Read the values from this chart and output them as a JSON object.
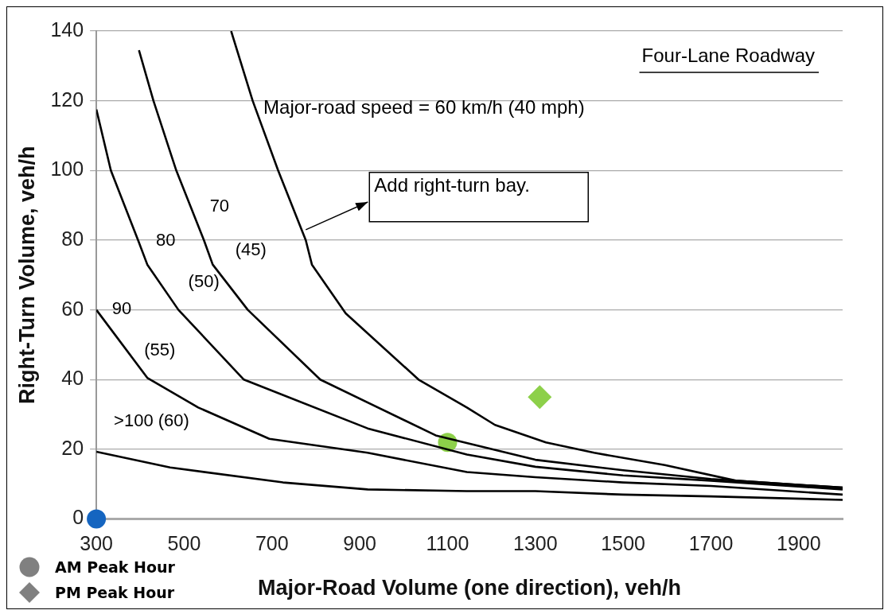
{
  "chart_data": {
    "type": "line",
    "xlabel": "Major-Road Volume (one direction), veh/h",
    "ylabel": "Right-Turn Volume, veh/h",
    "xlim": [
      300,
      2000
    ],
    "xticks": [
      300,
      500,
      700,
      900,
      1100,
      1300,
      1500,
      1700,
      1900
    ],
    "ylim": [
      0,
      140
    ],
    "yticks": [
      0,
      20,
      40,
      60,
      80,
      100,
      120,
      140
    ],
    "grid": "y",
    "marker": "none",
    "line_style": "solid",
    "annotations": [
      "Four-Lane Roadway",
      "Major-road speed = 60 km/h (40 mph)",
      {
        "text": "Add right-turn bay.",
        "x": 777,
        "y": 83
      },
      "70",
      "(45)",
      "80",
      "(50)",
      "90",
      "(55)",
      ">100 (60)",
      "AM Peak Hour",
      "PM Peak Hour"
    ],
    "series": [
      {
        "color": "#000000",
        "x": [
          607,
          656,
          714,
          777,
          791,
          868,
          1034,
          1144,
          1208,
          1324,
          1434,
          1595,
          1757,
          2000
        ],
        "values": [
          140,
          120,
          100,
          80,
          73,
          59,
          40,
          32,
          27,
          22,
          19,
          15.5,
          11,
          9
        ]
      },
      {
        "color": "#000000",
        "x": [
          397,
          430,
          482,
          545,
          565,
          645,
          810,
          1073,
          1300,
          1500,
          1700,
          2000
        ],
        "values": [
          134.5,
          120,
          100,
          80,
          73,
          60,
          40,
          24,
          17,
          14,
          11.5,
          9
        ]
      },
      {
        "color": "#000000",
        "x": [
          300,
          333,
          395,
          416,
          487,
          636,
          918,
          1144,
          1300,
          1500,
          1700,
          2000
        ],
        "values": [
          117.5,
          100,
          80,
          73,
          60,
          40,
          26,
          18.5,
          15,
          12.5,
          11,
          8.5
        ]
      },
      {
        "color": "#000000",
        "x": [
          300,
          416,
          532,
          694,
          918,
          1144,
          1300,
          1500,
          1700,
          2000
        ],
        "values": [
          60,
          40.5,
          32,
          23,
          19,
          13.5,
          12,
          10.5,
          9.5,
          7
        ]
      },
      {
        "color": "#000000",
        "x": [
          300,
          468,
          725,
          918,
          1144,
          1300,
          1500,
          1700,
          2000
        ],
        "values": [
          19.3,
          14.8,
          10.5,
          8.5,
          8,
          8,
          7,
          6.5,
          5.5
        ]
      },
      {
        "type": "scatter",
        "colors": [
          "#1565c0",
          "#8dd04a"
        ],
        "marker": "circle",
        "x": [
          300,
          1100
        ],
        "values": [
          0,
          22
        ]
      },
      {
        "type": "scatter",
        "colors": [
          "#8dd04a"
        ],
        "marker": "diamond",
        "x": [
          1310
        ],
        "values": [
          35
        ]
      }
    ]
  }
}
